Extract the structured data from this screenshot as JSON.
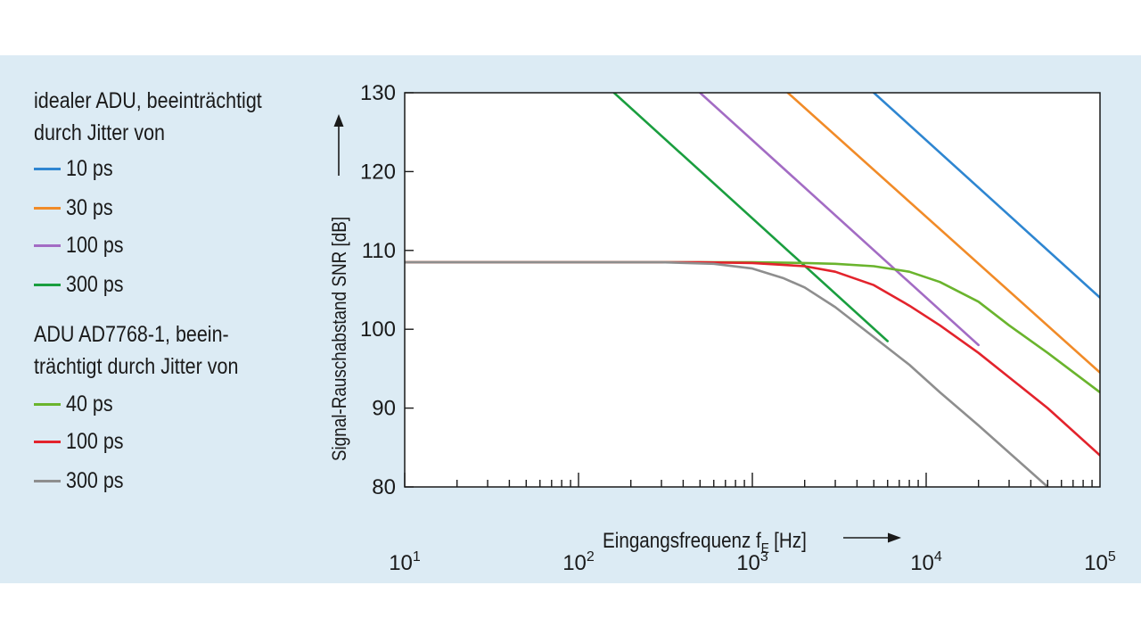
{
  "legend": {
    "group1_title_line1": "idealer ADU, beeinträchtigt",
    "group1_title_line2": "durch Jitter von",
    "group2_title_line1": "ADU AD7768-1, beein-",
    "group2_title_line2": "trächtigt durch Jitter von"
  },
  "chart_data": {
    "type": "line",
    "xlabel": "Eingangsfrequenz f",
    "xlabel_subscript": "E",
    "xlabel_unit": "[Hz]",
    "ylabel": "Signal-Rauschabstand SNR [dB]",
    "x_scale": "log",
    "xlim": [
      10,
      100000
    ],
    "ylim": [
      80,
      130
    ],
    "x_ticks": [
      {
        "base": "10",
        "exp": "1"
      },
      {
        "base": "10",
        "exp": "2"
      },
      {
        "base": "10",
        "exp": "3"
      },
      {
        "base": "10",
        "exp": "4"
      },
      {
        "base": "10",
        "exp": "5"
      }
    ],
    "y_ticks": [
      "80",
      "90",
      "100",
      "110",
      "120",
      "130"
    ],
    "grid": false,
    "series": [
      {
        "name": "10 ps",
        "group": "ideal",
        "color": "#2e86d1",
        "x": [
          5000,
          100000
        ],
        "y": [
          130,
          104
        ]
      },
      {
        "name": "30 ps",
        "group": "ideal",
        "color": "#f18b28",
        "x": [
          1600,
          100000
        ],
        "y": [
          130,
          94.5
        ]
      },
      {
        "name": "100 ps",
        "group": "ideal",
        "color": "#a36cc4",
        "x": [
          500,
          20000
        ],
        "y": [
          130,
          98
        ]
      },
      {
        "name": "300 ps",
        "group": "ideal",
        "color": "#1a9e3f",
        "x": [
          160,
          6000
        ],
        "y": [
          130,
          98.5
        ]
      },
      {
        "name": "40 ps",
        "group": "ad7768",
        "color": "#6ab42d",
        "x": [
          10,
          1000,
          2000,
          3000,
          5000,
          8000,
          12000,
          20000,
          30000,
          50000,
          100000
        ],
        "y": [
          108.5,
          108.5,
          108.4,
          108.3,
          108.0,
          107.3,
          106.0,
          103.5,
          100.5,
          97.0,
          92.0
        ]
      },
      {
        "name": "100 ps",
        "group": "ad7768",
        "color": "#e3232c",
        "x": [
          10,
          500,
          1000,
          2000,
          3000,
          5000,
          8000,
          12000,
          20000,
          50000,
          100000
        ],
        "y": [
          108.5,
          108.5,
          108.4,
          108.0,
          107.3,
          105.6,
          103.0,
          100.5,
          97.0,
          90.0,
          84.0
        ]
      },
      {
        "name": "300 ps",
        "group": "ad7768",
        "color": "#8e8e8e",
        "x": [
          10,
          300,
          600,
          1000,
          1500,
          2000,
          3000,
          5000,
          8000,
          12000,
          20000,
          50000
        ],
        "y": [
          108.5,
          108.5,
          108.3,
          107.7,
          106.5,
          105.3,
          102.8,
          99.0,
          95.5,
          92.0,
          87.8,
          80.0
        ]
      }
    ]
  }
}
